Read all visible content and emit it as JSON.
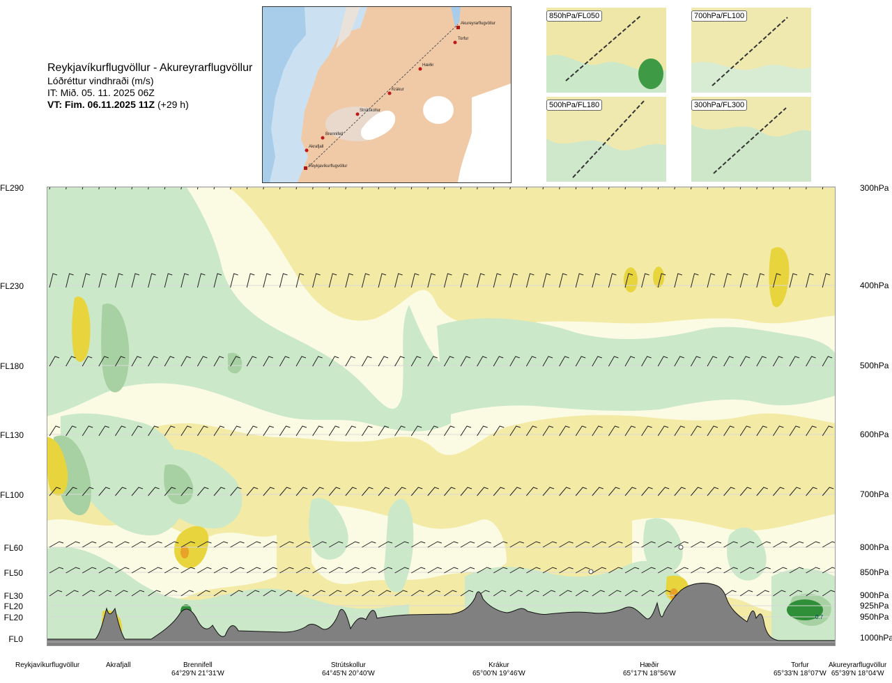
{
  "header": {
    "route": "Reykjavíkurflugvöllur - Akureyrarflugvöllur",
    "variable": "Lóðréttur vindhraði (m/s)",
    "issue_time": "IT: Mið. 05. 11. 2025 06Z",
    "valid_time_bold": "VT: Fim. 06.11.2025 11Z",
    "valid_time_offset": "(+29 h)"
  },
  "route_map": {
    "waypoints": [
      "Akureyrarflugvöllur",
      "Torfur",
      "Hæðir",
      "Krákur",
      "Strútskollur",
      "Brennifell",
      "Akrafjall",
      "Reykjavíkurflugvöllur"
    ]
  },
  "thumbnails": [
    {
      "label": "850hPa/FL050"
    },
    {
      "label": "700hPa/FL100"
    },
    {
      "label": "500hPa/FL180"
    },
    {
      "label": "300hPa/FL300"
    }
  ],
  "axes": {
    "left_levels": [
      "FL290",
      "FL230",
      "FL180",
      "FL130",
      "FL100",
      "FL60",
      "FL50",
      "FL30",
      "FL20",
      "FL20",
      "FL0"
    ],
    "right_levels": [
      "300hPa",
      "400hPa",
      "500hPa",
      "600hPa",
      "700hPa",
      "800hPa",
      "850hPa",
      "900hPa",
      "925hPa",
      "950hPa",
      "1000hPa"
    ]
  },
  "locations": [
    {
      "name": "Reykjavíkurflugvöllur",
      "coord": ""
    },
    {
      "name": "Akrafjall",
      "coord": ""
    },
    {
      "name": "Brennifell",
      "coord": "64°29'N 21°31'W"
    },
    {
      "name": "Strútskollur",
      "coord": "64°45'N 20°40'W"
    },
    {
      "name": "Krákur",
      "coord": "65°00'N 19°46'W"
    },
    {
      "name": "Hæðir",
      "coord": "65°17'N 18°56'W"
    },
    {
      "name": "Torfur",
      "coord": "65°33'N 18°07'W"
    },
    {
      "name": "Akureyrarflugvöllur",
      "coord": "65°39'N 18°04'W"
    }
  ],
  "chart_data": {
    "type": "heatmap",
    "title": "Reykjavíkurflugvöllur - Akureyrarflugvöllur",
    "subtitle": "Lóðréttur vindhraði (m/s)",
    "y_levels_hpa": [
      300,
      400,
      500,
      600,
      700,
      800,
      850,
      900,
      925,
      950,
      1000
    ],
    "annotation": "0.7",
    "colors": {
      "downdraft": "#f3eaa6",
      "neutral": "#fbfbe4",
      "weak_updraft": "#cbe8c9",
      "moderate_updraft": "#a7d1a3",
      "strong_updraft": "#2f8f38",
      "yellow_strong": "#e8d43c",
      "orange": "#e8a228",
      "terrain": "#808080"
    }
  }
}
